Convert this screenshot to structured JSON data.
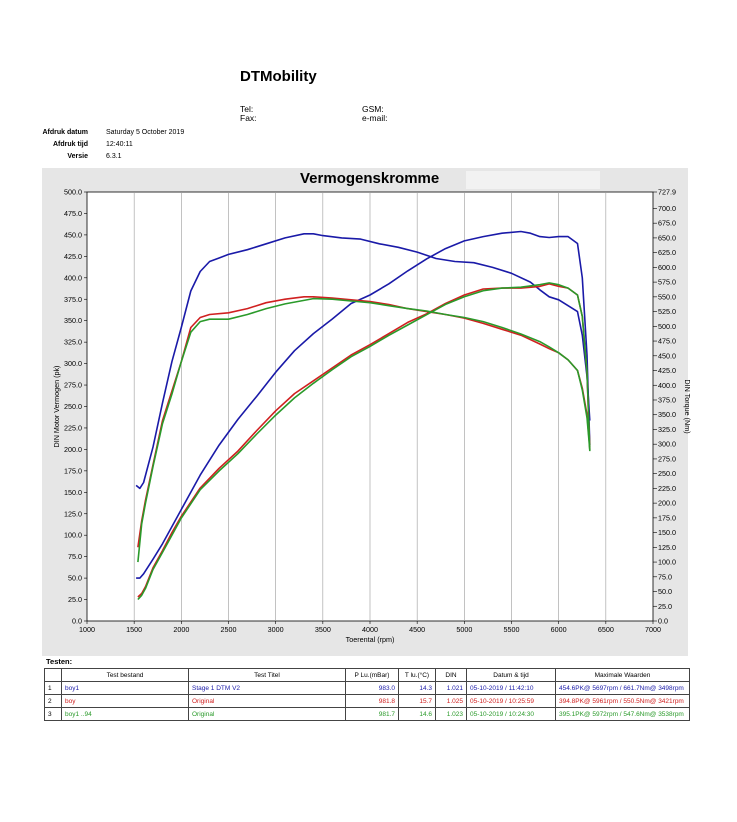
{
  "header": {
    "company": "DTMobility",
    "tel_label": "Tel:",
    "fax_label": "Fax:",
    "gsm_label": "GSM:",
    "email_label": "e-mail:"
  },
  "meta": {
    "print_date_label": "Afdruk datum",
    "print_date": "Saturday 5 October 2019",
    "print_time_label": "Afdruk tijd",
    "print_time": "12:40:11",
    "version_label": "Versie",
    "version": "6.3.1"
  },
  "chart_data": {
    "type": "line",
    "title": "Vermogenskromme",
    "xlabel": "Toerental (rpm)",
    "ylabel": "DIN Motor Vermogen (pk)",
    "y2label": "DIN Torque (Nm)",
    "xlim": [
      1000,
      7000
    ],
    "ylim": [
      0,
      500
    ],
    "y2lim": [
      0,
      727.9
    ],
    "x_ticks": [
      1000,
      1500,
      2000,
      2500,
      3000,
      3500,
      4000,
      4500,
      5000,
      5500,
      6000,
      6500,
      7000
    ],
    "y_ticks": [
      "0.0",
      "25.0",
      "50.0",
      "75.0",
      "100.0",
      "125.0",
      "150.0",
      "175.0",
      "200.0",
      "225.0",
      "250.0",
      "275.0",
      "300.0",
      "325.0",
      "350.0",
      "375.0",
      "400.0",
      "425.0",
      "450.0",
      "475.0",
      "500.0"
    ],
    "y2_ticks": [
      "0.0",
      "25.0",
      "50.0",
      "75.0",
      "100.0",
      "125.0",
      "150.0",
      "175.0",
      "200.0",
      "225.0",
      "250.0",
      "275.0",
      "300.0",
      "325.0",
      "350.0",
      "375.0",
      "400.0",
      "425.0",
      "450.0",
      "475.0",
      "500.0",
      "525.0",
      "550.0",
      "575.0",
      "600.0",
      "625.0",
      "650.0",
      "675.0",
      "700.0",
      "727.9"
    ],
    "grid": true,
    "series": [
      {
        "color": "#1a1aa8",
        "kind": "torque",
        "axis": "y2",
        "x": [
          1520,
          1560,
          1600,
          1700,
          1800,
          1900,
          2000,
          2100,
          2200,
          2300,
          2400,
          2500,
          2700,
          2900,
          3100,
          3300,
          3400,
          3500,
          3700,
          3900,
          4100,
          4300,
          4500,
          4700,
          4900,
          5100,
          5300,
          5500,
          5700,
          5800,
          5900,
          6000,
          6100,
          6200,
          6250,
          6300,
          6330
        ],
        "y": [
          230,
          225,
          235,
          295,
          370,
          440,
          498,
          560,
          593,
          610,
          616,
          622,
          630,
          640,
          650,
          657,
          657,
          654,
          650,
          648,
          640,
          634,
          626,
          615,
          610,
          608,
          600,
          590,
          575,
          562,
          550,
          545,
          535,
          525,
          485,
          415,
          340
        ]
      },
      {
        "color": "#1a1aa8",
        "kind": "power",
        "axis": "y",
        "x": [
          1520,
          1560,
          1600,
          1700,
          1800,
          1900,
          2000,
          2200,
          2400,
          2600,
          2800,
          3000,
          3200,
          3400,
          3600,
          3800,
          4000,
          4200,
          4400,
          4600,
          4800,
          5000,
          5200,
          5400,
          5600,
          5700,
          5800,
          5900,
          6000,
          6100,
          6200,
          6250,
          6300,
          6330
        ],
        "y": [
          50,
          50,
          55,
          72,
          90,
          110,
          130,
          170,
          205,
          235,
          262,
          290,
          315,
          335,
          352,
          370,
          380,
          393,
          408,
          422,
          434,
          443,
          448,
          452,
          454,
          452,
          448,
          447,
          448,
          448,
          440,
          400,
          310,
          205
        ]
      },
      {
        "color": "#d02020",
        "kind": "torque",
        "axis": "y2",
        "x": [
          1540,
          1580,
          1620,
          1700,
          1800,
          1900,
          2000,
          2100,
          2200,
          2300,
          2500,
          2700,
          2900,
          3100,
          3300,
          3400,
          3600,
          3800,
          4000,
          4200,
          4400,
          4600,
          4800,
          5000,
          5200,
          5400,
          5600,
          5800,
          5900,
          6000,
          6100,
          6200,
          6250,
          6300,
          6330
        ],
        "y": [
          125,
          170,
          205,
          265,
          340,
          390,
          440,
          498,
          515,
          520,
          523,
          530,
          540,
          546,
          550,
          550,
          548,
          545,
          542,
          537,
          530,
          525,
          520,
          514,
          505,
          495,
          485,
          470,
          462,
          455,
          443,
          425,
          395,
          350,
          295
        ]
      },
      {
        "color": "#d02020",
        "kind": "power",
        "axis": "y",
        "x": [
          1540,
          1580,
          1620,
          1700,
          1800,
          1900,
          2000,
          2200,
          2400,
          2600,
          2800,
          3000,
          3200,
          3400,
          3600,
          3800,
          4000,
          4200,
          4400,
          4600,
          4800,
          5000,
          5200,
          5400,
          5600,
          5800,
          5900,
          6000,
          6100,
          6200,
          6250,
          6300,
          6330
        ],
        "y": [
          28,
          32,
          40,
          62,
          82,
          103,
          122,
          155,
          178,
          198,
          222,
          245,
          265,
          280,
          295,
          310,
          322,
          335,
          348,
          358,
          370,
          380,
          387,
          388,
          388,
          390,
          393,
          390,
          388,
          380,
          355,
          290,
          200
        ]
      },
      {
        "color": "#2a9a2a",
        "kind": "torque",
        "axis": "y2",
        "x": [
          1540,
          1580,
          1620,
          1700,
          1800,
          1900,
          2000,
          2100,
          2200,
          2300,
          2500,
          2700,
          2900,
          3100,
          3300,
          3400,
          3600,
          3800,
          4000,
          4200,
          4400,
          4600,
          4800,
          5000,
          5200,
          5400,
          5600,
          5800,
          5900,
          6000,
          6100,
          6200,
          6250,
          6300,
          6330
        ],
        "y": [
          100,
          165,
          200,
          262,
          335,
          385,
          440,
          490,
          508,
          512,
          512,
          520,
          530,
          538,
          544,
          547,
          546,
          543,
          540,
          535,
          530,
          526,
          520,
          515,
          508,
          498,
          487,
          474,
          465,
          455,
          443,
          425,
          392,
          345,
          290
        ]
      },
      {
        "color": "#2a9a2a",
        "kind": "power",
        "axis": "y",
        "x": [
          1540,
          1580,
          1620,
          1700,
          1800,
          1900,
          2000,
          2200,
          2400,
          2600,
          2800,
          3000,
          3200,
          3400,
          3600,
          3800,
          4000,
          4200,
          4400,
          4600,
          4800,
          5000,
          5200,
          5400,
          5600,
          5800,
          5900,
          6000,
          6100,
          6200,
          6250,
          6300,
          6330
        ],
        "y": [
          25,
          30,
          38,
          60,
          80,
          100,
          120,
          153,
          175,
          195,
          218,
          240,
          260,
          277,
          293,
          308,
          320,
          333,
          345,
          357,
          369,
          378,
          385,
          388,
          389,
          392,
          394,
          392,
          388,
          380,
          355,
          290,
          198
        ]
      }
    ]
  },
  "tests": {
    "label": "Testen:",
    "headers": [
      "",
      "Test bestand",
      "Test Titel",
      "P Lu.(mBar)",
      "T lu.(°C)",
      "DIN",
      "Datum & tijd",
      "Maximale Waarden"
    ],
    "rows": [
      {
        "no": "1",
        "file": "boy1",
        "title": "Stage 1 DTM V2",
        "p": "983.0",
        "t": "14.3",
        "din": "1.021",
        "date": "05-10-2019 / 11:42:10",
        "max": "454.6PK@ 5697rpm / 661.7Nm@ 3498rpm",
        "color": "#1a1aa8"
      },
      {
        "no": "2",
        "file": "boy",
        "title": "Original",
        "p": "981.8",
        "t": "15.7",
        "din": "1.025",
        "date": "05-10-2019 / 10:25:59",
        "max": "394.8PK@ 5961rpm / 550.5Nm@ 3421rpm",
        "color": "#d02020"
      },
      {
        "no": "3",
        "file": "boy1 ..94",
        "title": "Original",
        "p": "981.7",
        "t": "14.6",
        "din": "1.023",
        "date": "05-10-2019 / 10:24:30",
        "max": "395.1PK@ 5972rpm / 547.6Nm@ 3538rpm",
        "color": "#2a9a2a"
      }
    ]
  }
}
